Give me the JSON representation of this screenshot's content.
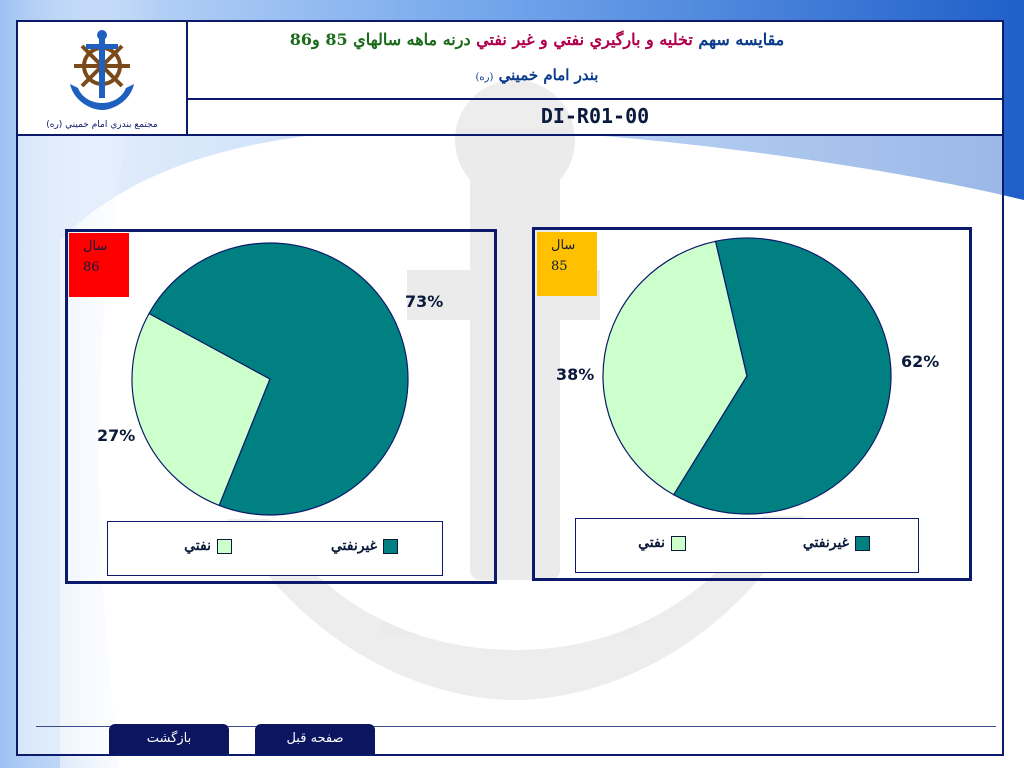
{
  "header": {
    "title_part1": "مقايسه سهم",
    "title_part2": "تخليه و بارگيري نفتي و غير نفتي",
    "title_part3": "درنه ماهه سالهاي 85 و86",
    "subtitle": "بندر امام خميني",
    "subtitle_small": "(ره)",
    "doc_code": "DI-R01-00",
    "logo_caption": "مجتمع بندري امام خميني (ره)"
  },
  "colors": {
    "oil": "#ccffcc",
    "non_oil": "#008080",
    "badge_86": "#ff0000",
    "badge_85": "#ffc000",
    "frame": "#0b1a6b"
  },
  "chart_data": [
    {
      "type": "pie",
      "badge_label": "سال",
      "badge_year": "86",
      "series": [
        {
          "name": "نفتي",
          "value": 27,
          "label": "27%"
        },
        {
          "name": "غيرنفتي",
          "value": 73,
          "label": "73%"
        }
      ],
      "legend": [
        "نفتي",
        "غيرنفتي"
      ],
      "legend_position": "bottom"
    },
    {
      "type": "pie",
      "badge_label": "سال",
      "badge_year": "85",
      "series": [
        {
          "name": "نفتي",
          "value": 38,
          "label": "38%"
        },
        {
          "name": "غيرنفتي",
          "value": 62,
          "label": "62%"
        }
      ],
      "legend": [
        "نفتي",
        "غيرنفتي"
      ],
      "legend_position": "bottom"
    }
  ],
  "nav": {
    "back_label": "بازگشت",
    "prev_label": "صفحه قبل"
  }
}
